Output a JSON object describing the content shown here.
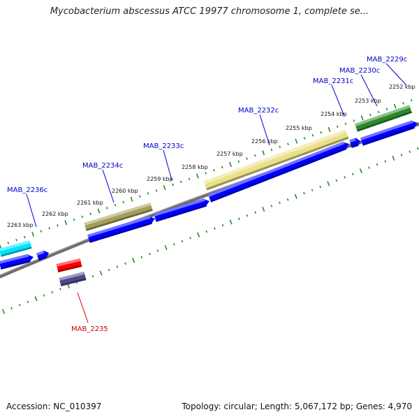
{
  "title": "Mycobacterium abscessus ATCC 19977 chromosome 1, complete se...",
  "footer": {
    "accession": "Accession: NC_010397",
    "topology": "Topology: circular; Length: 5,067,172 bp; Genes: 4,970"
  },
  "colors": {
    "backbone": "#808080",
    "tick": "#228B22",
    "gene_label": "#0000cc",
    "highlight_label": "#cc0000",
    "forward_blue": "#0000ff",
    "pseudo_olive": "#a39e5a",
    "khaki": "#ebe08a",
    "green": "#2a8a2a",
    "cyan": "#00e5ff",
    "red": "#ff0000",
    "slate": "#4a4a8a"
  },
  "scale": {
    "unit": "kbp",
    "labels": [
      "2252 kbp",
      "2253 kbp",
      "2254 kbp",
      "2255 kbp",
      "2256 kbp",
      "2257 kbp",
      "2258 kbp",
      "2259 kbp",
      "2260 kbp",
      "2261 kbp",
      "2262 kbp",
      "2263 kbp"
    ]
  },
  "genes": [
    {
      "name": "MAB_2229c",
      "color": "gene_label"
    },
    {
      "name": "MAB_2230c",
      "color": "gene_label"
    },
    {
      "name": "MAB_2231c",
      "color": "gene_label"
    },
    {
      "name": "MAB_2232c",
      "color": "gene_label"
    },
    {
      "name": "MAB_2233c",
      "color": "gene_label"
    },
    {
      "name": "MAB_2234c",
      "color": "gene_label"
    },
    {
      "name": "MAB_2235",
      "color": "highlight_label"
    },
    {
      "name": "MAB_2236c",
      "color": "gene_label"
    }
  ]
}
